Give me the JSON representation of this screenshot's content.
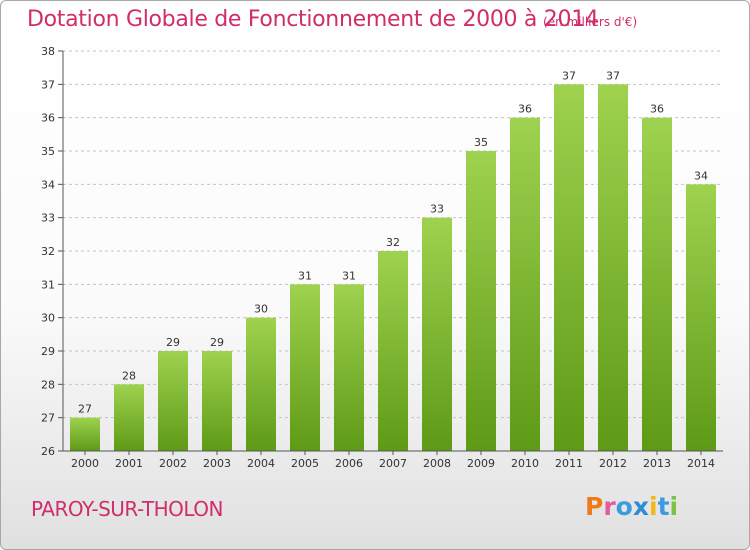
{
  "header": {
    "title": "Dotation Globale de Fonctionnement de 2000 à 2014",
    "unit_note": "(en milliers d'€)"
  },
  "footer": {
    "commune": "PAROY-SUR-THOLON",
    "logo_text": "Proxiti"
  },
  "colors": {
    "title": "#d02d6a",
    "bar_light": "#9ed24f",
    "bar_dark": "#5e9a16",
    "logo_letters": [
      "#f07a1a",
      "#e45a9a",
      "#3a9be0",
      "#2e8bd6",
      "#f0b81a",
      "#3a9be0",
      "#7cc242"
    ]
  },
  "chart_data": {
    "type": "bar",
    "title": "Dotation Globale de Fonctionnement de 2000 à 2014",
    "subtitle": "(en milliers d'€)",
    "xlabel": "",
    "ylabel": "",
    "categories": [
      "2000",
      "2001",
      "2002",
      "2003",
      "2004",
      "2005",
      "2006",
      "2007",
      "2008",
      "2009",
      "2010",
      "2011",
      "2012",
      "2013",
      "2014"
    ],
    "values": [
      27,
      28,
      29,
      29,
      30,
      31,
      31,
      32,
      33,
      35,
      36,
      37,
      37,
      36,
      34
    ],
    "ylim": [
      26,
      38
    ],
    "yticks": [
      26,
      27,
      28,
      29,
      30,
      31,
      32,
      33,
      34,
      35,
      36,
      37,
      38
    ],
    "grid": "horizontal-dashed",
    "legend": "none"
  }
}
